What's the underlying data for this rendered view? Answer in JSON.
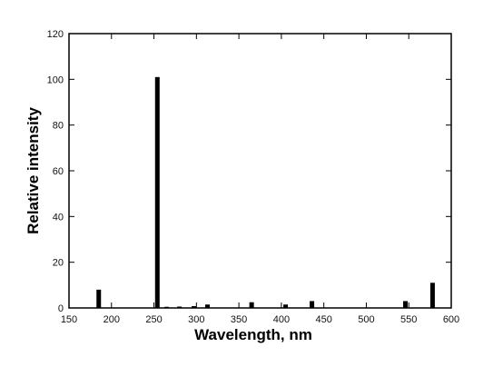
{
  "chart_data": {
    "type": "bar",
    "xlabel": "Wavelength, nm",
    "ylabel": "Relative intensity",
    "xlim": [
      150,
      600
    ],
    "ylim": [
      0,
      120
    ],
    "x_ticks": [
      150,
      200,
      250,
      300,
      350,
      400,
      450,
      500,
      550,
      600
    ],
    "y_ticks": [
      0,
      20,
      40,
      60,
      80,
      100,
      120
    ],
    "grid": false,
    "legend": "none",
    "bars": [
      {
        "x": 185,
        "y": 8
      },
      {
        "x": 254,
        "y": 101
      },
      {
        "x": 265,
        "y": 0.5
      },
      {
        "x": 280,
        "y": 0.6
      },
      {
        "x": 297,
        "y": 0.8
      },
      {
        "x": 313,
        "y": 1.5
      },
      {
        "x": 365,
        "y": 2.5
      },
      {
        "x": 405,
        "y": 1.5
      },
      {
        "x": 436,
        "y": 3
      },
      {
        "x": 546,
        "y": 3
      },
      {
        "x": 578,
        "y": 11
      }
    ],
    "bar_color": "#000000"
  }
}
